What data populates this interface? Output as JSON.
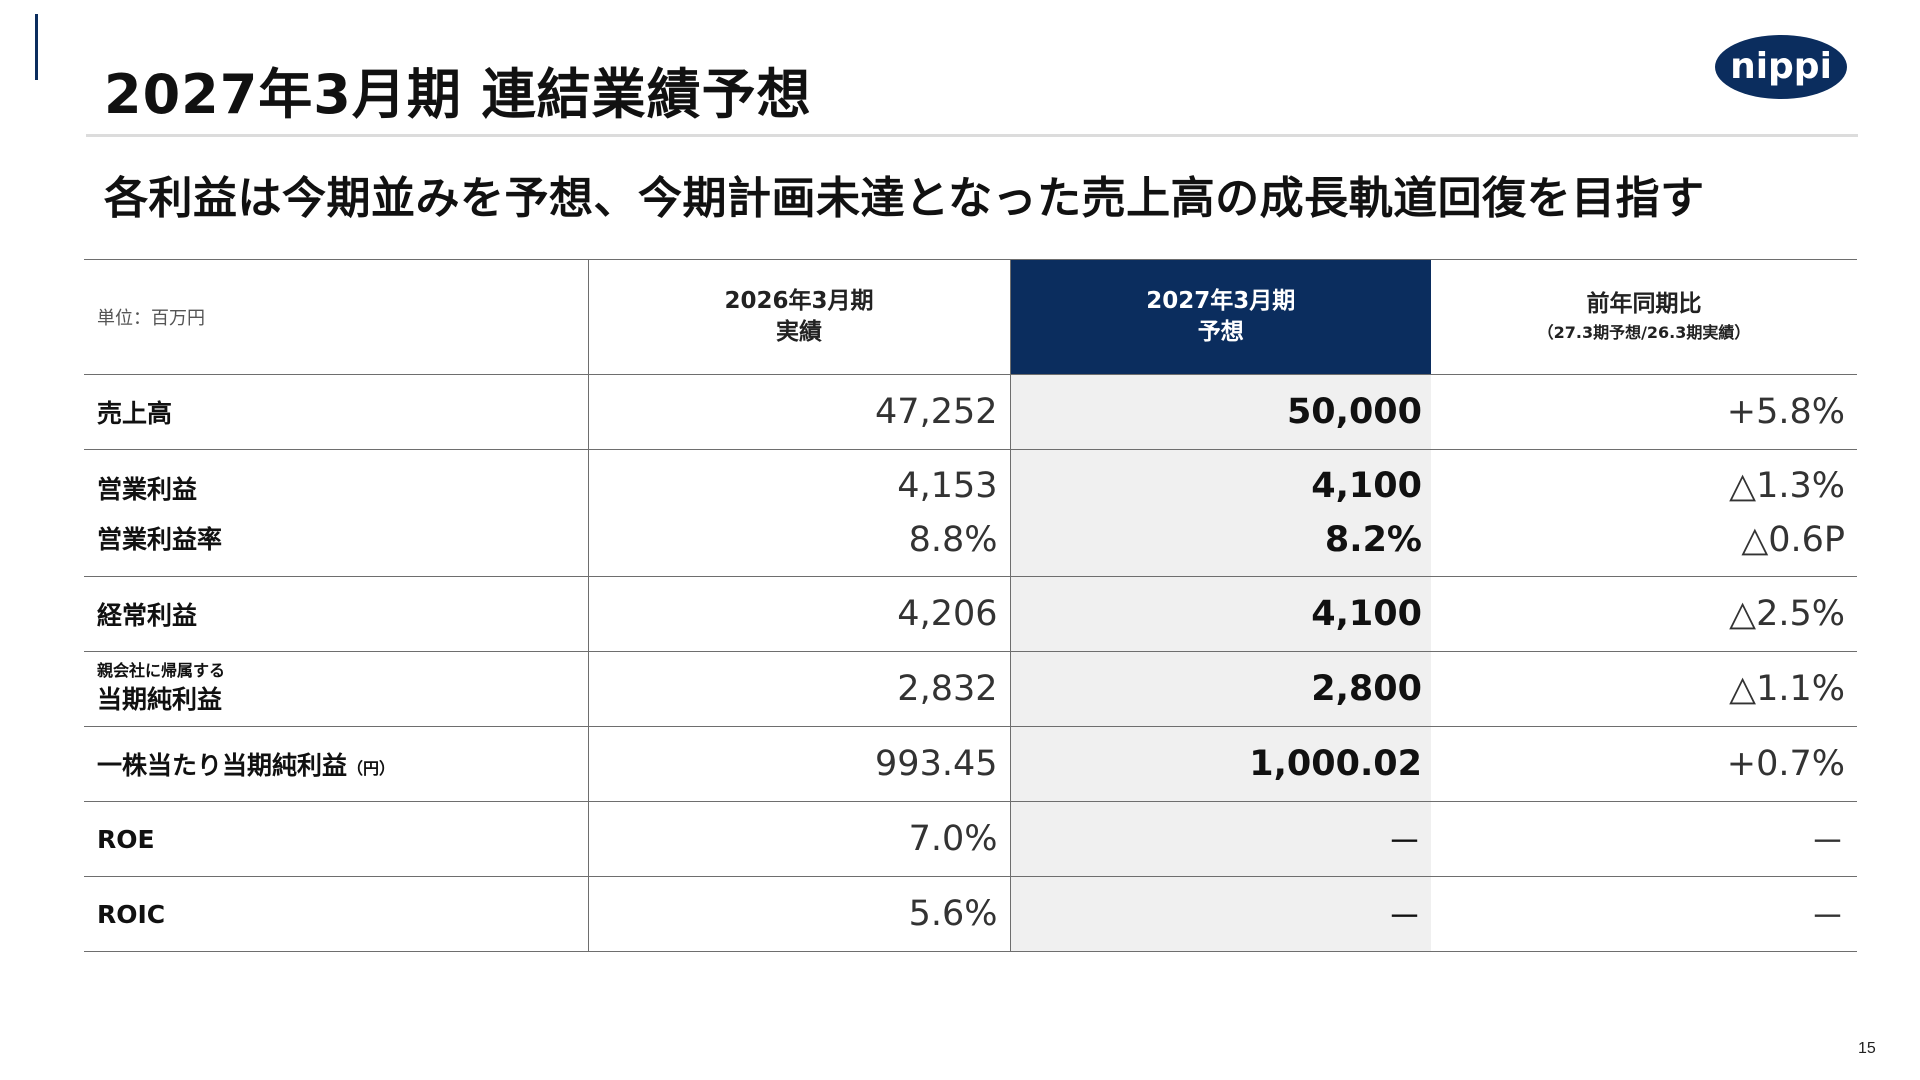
{
  "header": {
    "title": "2027年3月期 連結業績予想",
    "subtitle": "各利益は今期並みを予想、今期計画未達となった売上高の成長軌道回復を目指す",
    "logo_text": "nippi"
  },
  "colors": {
    "accent": "#0b2d5e",
    "highlight_column_bg": "#f0f0f0"
  },
  "table": {
    "unit_label": "単位：百万円",
    "columns": [
      {
        "line1": "2026年3月期",
        "line2": "実績"
      },
      {
        "line1": "2027年3月期",
        "line2": "予想"
      },
      {
        "line1": "前年同期比",
        "line2": "（27.3期予想/26.3期実績）"
      }
    ],
    "rows": [
      {
        "label": "売上高",
        "actual": "47,252",
        "forecast": "50,000",
        "change": "+5.8%"
      },
      {
        "label": "営業利益",
        "label2": "営業利益率",
        "actual": "4,153",
        "actual2": "8.8%",
        "forecast": "4,100",
        "forecast2": "8.2%",
        "change": "△1.3%",
        "change2": "△0.6P"
      },
      {
        "label": "経常利益",
        "actual": "4,206",
        "forecast": "4,100",
        "change": "△2.5%"
      },
      {
        "label_small": "親会社に帰属する",
        "label": "当期純利益",
        "actual": "2,832",
        "forecast": "2,800",
        "change": "△1.1%"
      },
      {
        "label": "一株当たり当期純利益",
        "label_unit": "（円）",
        "actual": "993.45",
        "forecast": "1,000.02",
        "change": "+0.7%"
      },
      {
        "label": "ROE",
        "actual": "7.0%",
        "forecast": "－",
        "change": "－"
      },
      {
        "label": "ROIC",
        "actual": "5.6%",
        "forecast": "－",
        "change": "－"
      }
    ]
  },
  "page_number": "15"
}
